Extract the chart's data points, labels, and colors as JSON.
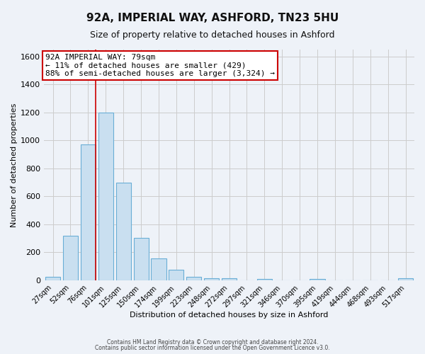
{
  "title": "92A, IMPERIAL WAY, ASHFORD, TN23 5HU",
  "subtitle": "Size of property relative to detached houses in Ashford",
  "xlabel": "Distribution of detached houses by size in Ashford",
  "ylabel": "Number of detached properties",
  "bar_labels": [
    "27sqm",
    "52sqm",
    "76sqm",
    "101sqm",
    "125sqm",
    "150sqm",
    "174sqm",
    "199sqm",
    "223sqm",
    "248sqm",
    "272sqm",
    "297sqm",
    "321sqm",
    "346sqm",
    "370sqm",
    "395sqm",
    "419sqm",
    "444sqm",
    "468sqm",
    "493sqm",
    "517sqm"
  ],
  "bar_values": [
    25,
    320,
    970,
    1200,
    700,
    305,
    155,
    75,
    25,
    15,
    15,
    0,
    10,
    0,
    0,
    10,
    0,
    0,
    0,
    0,
    15
  ],
  "bar_color": "#c9dff0",
  "bar_edge_color": "#6aaed6",
  "vline_x_index": 2,
  "vline_color": "#cc0000",
  "annotation_text_line1": "92A IMPERIAL WAY: 79sqm",
  "annotation_text_line2": "← 11% of detached houses are smaller (429)",
  "annotation_text_line3": "88% of semi-detached houses are larger (3,324) →",
  "annotation_box_facecolor": "#ffffff",
  "annotation_box_edgecolor": "#cc0000",
  "ylim": [
    0,
    1650
  ],
  "yticks": [
    0,
    200,
    400,
    600,
    800,
    1000,
    1200,
    1400,
    1600
  ],
  "grid_color": "#cccccc",
  "background_color": "#eef2f8",
  "footer_line1": "Contains HM Land Registry data © Crown copyright and database right 2024.",
  "footer_line2": "Contains public sector information licensed under the Open Government Licence v3.0."
}
